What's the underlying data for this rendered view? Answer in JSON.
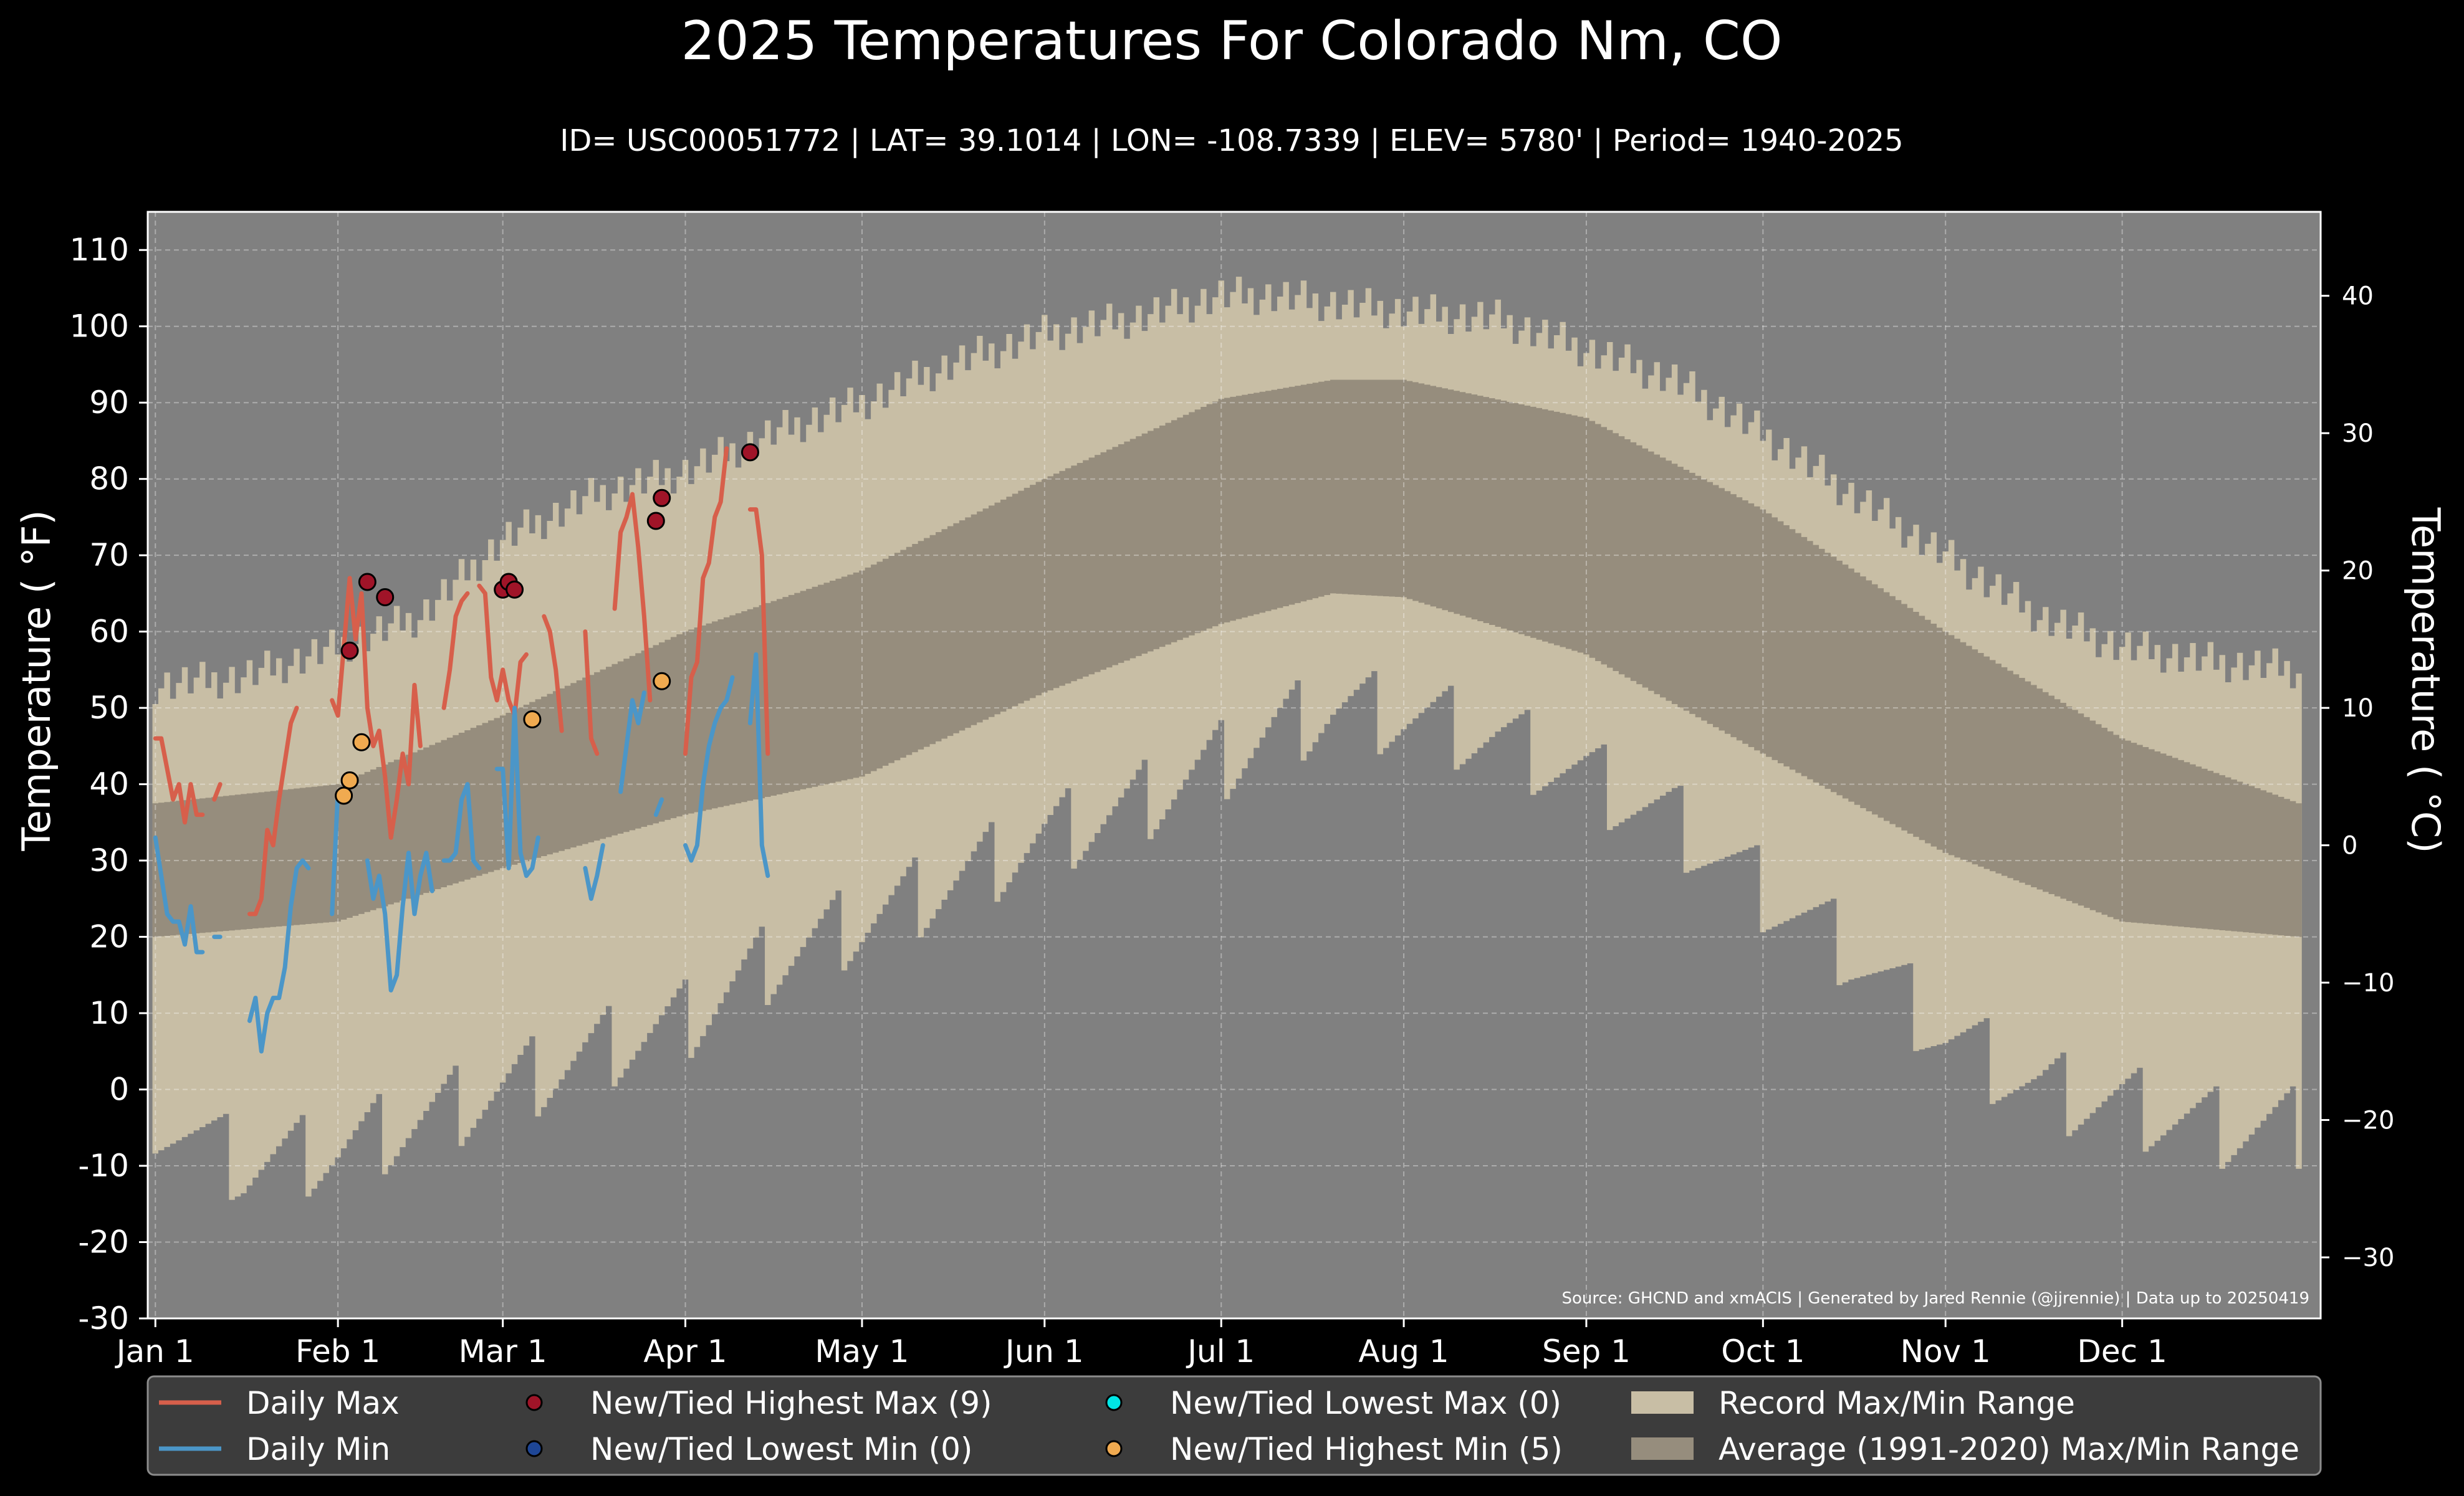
{
  "chart_data": {
    "type": "line",
    "title": "2025 Temperatures For Colorado Nm, CO",
    "subtitle": "ID= USC00051772 | LAT= 39.1014 | LON= -108.7339 | ELEV= 5780' | Period= 1940-2025",
    "ylabel": "Temperature ( $^{\\circ}$F)",
    "ylabel_display": "Temperature ( °F)",
    "y2label_display": "Temperature ( °C)",
    "ylim": [
      -30,
      115
    ],
    "yticks": [
      -30,
      -20,
      -10,
      0,
      10,
      20,
      30,
      40,
      50,
      60,
      70,
      80,
      90,
      100,
      110
    ],
    "y2ticks": [
      -30,
      -20,
      -10,
      0,
      10,
      20,
      30,
      40
    ],
    "y2tick_labels": [
      "−30",
      "−20",
      "−10",
      "0",
      "10",
      "20",
      "30",
      "40"
    ],
    "xlim_days": [
      0,
      365
    ],
    "xtick_labels": [
      "Jan 1",
      "Feb 1",
      "Mar 1",
      "Apr 1",
      "May 1",
      "Jun 1",
      "Jul 1",
      "Aug 1",
      "Sep 1",
      "Oct 1",
      "Nov 1",
      "Dec 1"
    ],
    "xtick_days": [
      0,
      31,
      59,
      90,
      120,
      151,
      181,
      212,
      243,
      273,
      304,
      334
    ],
    "grid": true,
    "legend_position": "bottom",
    "source_note": "Source: GHCND and xmACIS | Generated by Jared Rennie (@jjrennie) | Data up to 20250419",
    "colors": {
      "background": "#000000",
      "plot_bg": "#808080",
      "record_range": "#c8bea5",
      "normal_range": "#968d7d",
      "daily_max": "#d75f4b",
      "daily_min": "#4b96c8",
      "new_high_max": "#a01428",
      "new_low_min": "#1e4696",
      "new_low_max": "#00e6e6",
      "new_high_min": "#f0aa50"
    },
    "legend": [
      {
        "label": "Daily Max",
        "kind": "line",
        "color": "#d75f4b"
      },
      {
        "label": "Daily Min",
        "kind": "line",
        "color": "#4b96c8"
      },
      {
        "label": "New/Tied Highest Max (9)",
        "kind": "marker",
        "color": "#a01428"
      },
      {
        "label": "New/Tied Lowest Min (0)",
        "kind": "marker",
        "color": "#1e4696"
      },
      {
        "label": "New/Tied Lowest Max (0)",
        "kind": "marker",
        "color": "#00e6e6"
      },
      {
        "label": "New/Tied Highest Min (5)",
        "kind": "marker",
        "color": "#f0aa50"
      },
      {
        "label": "Record Max/Min Range",
        "kind": "patch",
        "color": "#c8bea5"
      },
      {
        "label": "Average (1991-2020) Max/Min Range",
        "kind": "patch",
        "color": "#968d7d"
      }
    ],
    "normals": {
      "description": "Average (1991-2020) daily max/min, sampled at day-of-year",
      "day": [
        0,
        31,
        59,
        90,
        120,
        151,
        181,
        200,
        212,
        243,
        273,
        304,
        334,
        364
      ],
      "max": [
        37.5,
        40,
        49,
        60,
        68,
        80,
        90.5,
        93,
        93,
        88,
        76,
        60,
        46,
        37.5
      ],
      "min": [
        20,
        22,
        29,
        36,
        41,
        52,
        61,
        65,
        64.5,
        57,
        44,
        31,
        22,
        20
      ]
    },
    "records": {
      "description": "Record highest max / lowest min, sampled at day-of-year",
      "day": [
        0,
        15,
        31,
        45,
        59,
        75,
        90,
        105,
        120,
        135,
        151,
        166,
        181,
        190,
        200,
        212,
        228,
        243,
        258,
        273,
        288,
        304,
        320,
        334,
        350,
        364
      ],
      "max": [
        53,
        54,
        58,
        62,
        72,
        78,
        81,
        86,
        90,
        95,
        99,
        101,
        104,
        104,
        103,
        102,
        101,
        97,
        93,
        86,
        78,
        70,
        62,
        58,
        56,
        55
      ],
      "min": [
        -3,
        -10,
        -8,
        -4,
        0,
        5,
        9,
        17,
        22,
        27,
        33,
        37,
        43,
        47,
        50,
        49,
        46,
        41,
        35,
        26,
        18,
        7,
        0,
        -2,
        -5,
        -5
      ]
    },
    "series": [
      {
        "name": "Daily Max",
        "x": [
          0,
          1,
          2,
          3,
          4,
          5,
          6,
          7,
          8,
          9,
          10,
          11,
          12,
          13,
          14,
          16,
          17,
          18,
          19,
          20,
          21,
          22,
          23,
          24,
          25,
          26,
          27,
          28,
          30,
          31,
          32,
          33,
          34,
          35,
          36,
          37,
          38,
          39,
          40,
          41,
          42,
          43,
          44,
          45,
          46,
          47,
          48,
          49,
          50,
          51,
          52,
          53,
          54,
          55,
          56,
          57,
          58,
          59,
          60,
          61,
          62,
          63,
          64,
          65,
          66,
          67,
          68,
          69,
          70,
          71,
          72,
          73,
          74,
          75,
          76,
          77,
          78,
          79,
          80,
          81,
          82,
          83,
          84,
          85,
          86,
          87,
          88,
          89,
          90,
          91,
          92,
          93,
          94,
          95,
          96,
          97,
          98,
          99,
          100,
          101,
          102,
          103,
          104,
          105,
          106,
          107,
          108,
          109
        ],
        "y": [
          46,
          46,
          42,
          38,
          40,
          35,
          40,
          36,
          36,
          null,
          38,
          40,
          null,
          null,
          null,
          23,
          23,
          25,
          34,
          32,
          38,
          43,
          48,
          50,
          null,
          null,
          null,
          null,
          51,
          49,
          58,
          67,
          59,
          65,
          50,
          45,
          47,
          41,
          33,
          38,
          44,
          40,
          53,
          45,
          null,
          null,
          null,
          50,
          55,
          62,
          64,
          65,
          null,
          66,
          65,
          54,
          51,
          55,
          51,
          49,
          56,
          57,
          null,
          null,
          62,
          60,
          55,
          47,
          null,
          null,
          null,
          60,
          46,
          44,
          null,
          null,
          63,
          73,
          75,
          78,
          71,
          62,
          51,
          null,
          null,
          null,
          null,
          null,
          44,
          54,
          56,
          67,
          69,
          75,
          77,
          84,
          null,
          null,
          null,
          76,
          76,
          70,
          44,
          null,
          null,
          null,
          null,
          null
        ],
        "color": "#d75f4b"
      },
      {
        "name": "Daily Min",
        "x": [
          0,
          1,
          2,
          3,
          4,
          5,
          6,
          7,
          8,
          9,
          10,
          11,
          12,
          13,
          14,
          16,
          17,
          18,
          19,
          20,
          21,
          22,
          23,
          24,
          25,
          26,
          27,
          28,
          30,
          31,
          32,
          33,
          34,
          35,
          36,
          37,
          38,
          39,
          40,
          41,
          42,
          43,
          44,
          45,
          46,
          47,
          48,
          49,
          50,
          51,
          52,
          53,
          54,
          55,
          56,
          57,
          58,
          59,
          60,
          61,
          62,
          63,
          64,
          65,
          66,
          67,
          68,
          69,
          70,
          71,
          72,
          73,
          74,
          75,
          76,
          77,
          78,
          79,
          80,
          81,
          82,
          83,
          84,
          85,
          86,
          87,
          88,
          89,
          90,
          91,
          92,
          93,
          94,
          95,
          96,
          97,
          98,
          99,
          100,
          101,
          102,
          103,
          104,
          105,
          106,
          107,
          108,
          109
        ],
        "y": [
          33,
          28,
          23,
          22,
          22,
          19,
          24,
          18,
          18,
          null,
          20,
          20,
          null,
          null,
          null,
          9,
          12,
          5,
          10,
          12,
          12,
          16,
          24,
          29,
          30,
          29,
          null,
          null,
          23,
          39,
          null,
          null,
          null,
          null,
          30,
          25,
          28,
          23,
          13,
          15,
          24,
          31,
          23,
          28,
          31,
          26,
          null,
          30,
          30,
          31,
          38,
          40,
          30,
          29,
          null,
          null,
          42,
          42,
          29,
          50,
          31,
          28,
          29,
          33,
          null,
          null,
          null,
          null,
          null,
          null,
          null,
          29,
          25,
          28,
          32,
          null,
          null,
          39,
          45,
          51,
          48,
          52,
          null,
          36,
          38,
          null,
          null,
          null,
          32,
          30,
          32,
          40,
          45,
          48,
          50,
          51,
          54,
          null,
          null,
          48,
          57,
          32,
          28,
          null,
          null,
          null,
          null,
          null
        ],
        "color": "#4b96c8"
      }
    ],
    "markers": {
      "new_tied_highest_max": {
        "x": [
          33,
          36,
          39,
          59,
          60,
          61,
          85,
          86,
          101
        ],
        "y": [
          57.5,
          66.5,
          64.5,
          65.5,
          66.5,
          65.5,
          74.5,
          77.5,
          83.5
        ]
      },
      "new_tied_highest_min": {
        "x": [
          32,
          33,
          35,
          64,
          86
        ],
        "y": [
          38.5,
          40.5,
          45.5,
          48.5,
          53.5
        ]
      },
      "new_tied_lowest_max": {
        "x": [],
        "y": []
      },
      "new_tied_lowest_min": {
        "x": [],
        "y": []
      }
    }
  }
}
